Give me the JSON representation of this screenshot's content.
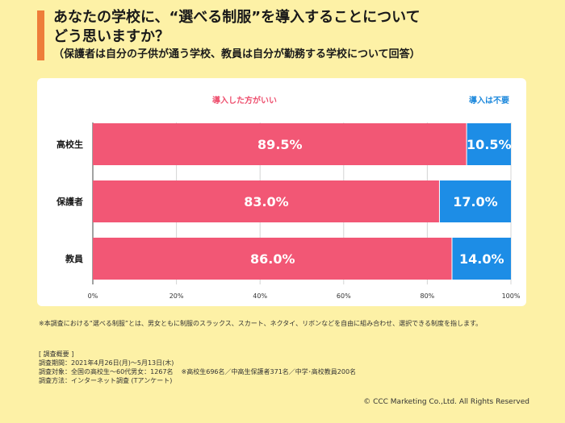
{
  "header": {
    "title_line1": "あなたの学校に、“選べる制服”を導入することについて",
    "title_line2": "どう思いますか？",
    "subtitle": "（保護者は自分の子供が通う学校、教員は自分が勤務する学校について回答）",
    "accent_color": "#ee7d3a"
  },
  "chart_data": {
    "type": "bar",
    "orientation": "horizontal",
    "stacked": true,
    "categories": [
      "高校生",
      "保護者",
      "教員"
    ],
    "series": [
      {
        "name": "導入した方がいい",
        "values": [
          89.5,
          83.0,
          86.0
        ],
        "labels": [
          "89.5%",
          "83.0%",
          "86.0%"
        ],
        "color": "#f25775",
        "legend_color": "#ee4f6e"
      },
      {
        "name": "導入は不要",
        "values": [
          10.5,
          17.0,
          14.0
        ],
        "labels": [
          "10.5%",
          "17.0%",
          "14.0%"
        ],
        "color": "#1d8de6",
        "legend_color": "#1c88dc"
      }
    ],
    "xlim": [
      0,
      100
    ],
    "xticks": [
      "0%",
      "20%",
      "40%",
      "60%",
      "80%",
      "100%"
    ],
    "grid": true,
    "legend_placement": "top"
  },
  "notes": {
    "footnote": "※本調査における“選べる制服”とは、男女ともに制服のスラックス、スカート、ネクタイ、リボンなどを自由に組み合わせ、選択できる制度を指します。",
    "summary_heading": "[ 調査概要 ]",
    "summary_period": "調査期間：2021年4月26日(月)～5月13日(木)",
    "summary_target": "調査対象：全国の高校生～60代男女：1267名",
    "summary_breakdown": "※高校生696名／中高生保護者371名／中学･高校教員200名",
    "summary_method": "調査方法：インターネット調査 (Tアンケート)",
    "copyright": "© CCC Marketing Co.,Ltd. All Rights Reserved"
  }
}
